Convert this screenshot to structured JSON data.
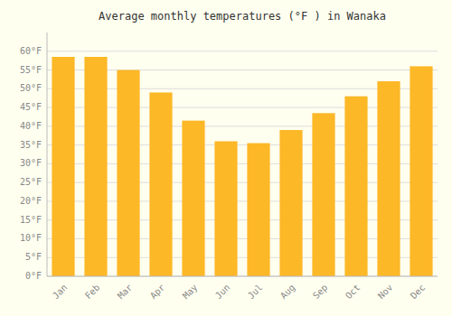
{
  "chart_data": {
    "type": "bar",
    "title": "Average monthly temperatures (°F ) in Wanaka",
    "categories": [
      "Jan",
      "Feb",
      "Mar",
      "Apr",
      "May",
      "Jun",
      "Jul",
      "Aug",
      "Sep",
      "Oct",
      "Nov",
      "Dec"
    ],
    "values": [
      58.5,
      58.5,
      55.0,
      49.0,
      41.5,
      36.0,
      35.5,
      39.0,
      43.5,
      48.0,
      52.0,
      56.0
    ],
    "color": "#FDB827",
    "ylim": [
      0,
      65
    ],
    "yticks": [
      {
        "value": 0,
        "label": "0°F"
      },
      {
        "value": 5,
        "label": "5°F"
      },
      {
        "value": 10,
        "label": "10°F"
      },
      {
        "value": 15,
        "label": "15°F"
      },
      {
        "value": 20,
        "label": "20°F"
      },
      {
        "value": 25,
        "label": "25°F"
      },
      {
        "value": 30,
        "label": "30°F"
      },
      {
        "value": 35,
        "label": "35°F"
      },
      {
        "value": 40,
        "label": "40°F"
      },
      {
        "value": 45,
        "label": "45°F"
      },
      {
        "value": 50,
        "label": "50°F"
      },
      {
        "value": 55,
        "label": "55°F"
      },
      {
        "value": 60,
        "label": "60°F"
      }
    ],
    "grid": true
  }
}
